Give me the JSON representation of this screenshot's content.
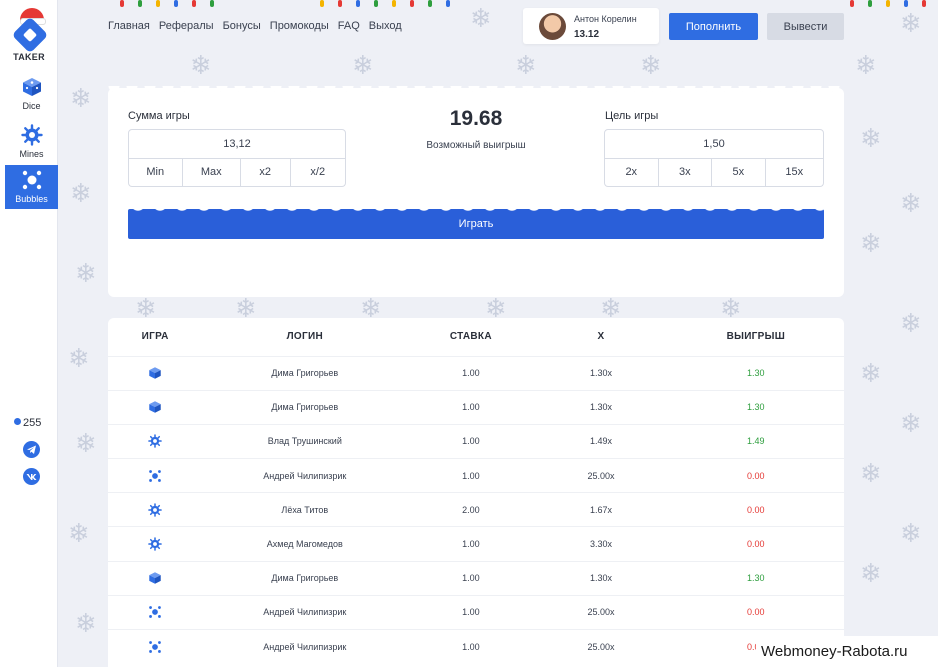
{
  "app": {
    "brand": "TAKER"
  },
  "sidebar": {
    "items": [
      {
        "label": "Dice",
        "icon": "dice-icon"
      },
      {
        "label": "Mines",
        "icon": "mine-icon"
      },
      {
        "label": "Bubbles",
        "icon": "bubbles-icon",
        "active": true
      }
    ],
    "online_count": "255",
    "socials": [
      "telegram-icon",
      "vk-icon"
    ]
  },
  "topnav": {
    "links": [
      "Главная",
      "Рефералы",
      "Бонусы",
      "Промокоды",
      "FAQ",
      "Выход"
    ]
  },
  "user": {
    "name": "Антон Корелин",
    "balance": "13.12"
  },
  "header": {
    "deposit_label": "Пополнить",
    "withdraw_label": "Вывести"
  },
  "game": {
    "bet_label": "Сумма игры",
    "bet_value": "13,12",
    "bet_buttons": [
      "Min",
      "Max",
      "x2",
      "x/2"
    ],
    "possible_win": "19.68",
    "possible_win_label": "Возможный выигрыш",
    "goal_label": "Цель игры",
    "goal_value": "1,50",
    "goal_buttons": [
      "2x",
      "3x",
      "5x",
      "15x"
    ],
    "play_label": "Играть"
  },
  "history": {
    "columns": [
      "ИГРА",
      "ЛОГИН",
      "СТАВКА",
      "X",
      "ВЫИГРЫШ"
    ],
    "rows": [
      {
        "game": "dice",
        "login": "Дима Григорьев",
        "bet": "1.00",
        "x": "1.30x",
        "win": "1.30",
        "status": "win"
      },
      {
        "game": "dice",
        "login": "Дима Григорьев",
        "bet": "1.00",
        "x": "1.30x",
        "win": "1.30",
        "status": "win"
      },
      {
        "game": "mines",
        "login": "Влад Трушинский",
        "bet": "1.00",
        "x": "1.49x",
        "win": "1.49",
        "status": "win"
      },
      {
        "game": "bubbles",
        "login": "Андрей Чилипизрик",
        "bet": "1.00",
        "x": "25.00x",
        "win": "0.00",
        "status": "lose"
      },
      {
        "game": "mines",
        "login": "Лёха Титов",
        "bet": "2.00",
        "x": "1.67x",
        "win": "0.00",
        "status": "lose"
      },
      {
        "game": "mines",
        "login": "Ахмед Магомедов",
        "bet": "1.00",
        "x": "3.30x",
        "win": "0.00",
        "status": "lose"
      },
      {
        "game": "dice",
        "login": "Дима Григорьев",
        "bet": "1.00",
        "x": "1.30x",
        "win": "1.30",
        "status": "win"
      },
      {
        "game": "bubbles",
        "login": "Андрей Чилипизрик",
        "bet": "1.00",
        "x": "25.00x",
        "win": "0.00",
        "status": "lose"
      },
      {
        "game": "bubbles",
        "login": "Андрей Чилипизрик",
        "bet": "1.00",
        "x": "25.00x",
        "win": "0.00",
        "status": "lose"
      }
    ]
  },
  "colors": {
    "accent": "#2f6de2",
    "win": "#2e9e3e",
    "lose": "#e53935"
  },
  "watermark": "Webmoney-Rabota.ru"
}
